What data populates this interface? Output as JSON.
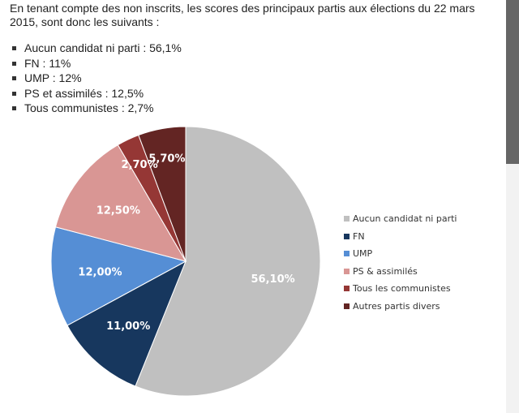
{
  "article": {
    "intro": "En tenant compte des non inscrits, les scores des principaux partis aux élections du 22 mars 2015, sont donc les suivants :",
    "bullets": [
      "Aucun candidat ni parti : 56,1%",
      "FN : 11%",
      "UMP : 12%",
      "PS et assimilés : 12,5%",
      "Tous communistes : 2,7%"
    ]
  },
  "chart_data": {
    "type": "pie",
    "categories": [
      "Aucun candidat ni parti",
      "FN",
      "UMP",
      "PS & assimilés",
      "Tous les communistes",
      "Autres partis divers"
    ],
    "values": [
      56.1,
      11.0,
      12.0,
      12.5,
      2.7,
      5.7
    ],
    "value_labels": [
      "56,10%",
      "11,00%",
      "12,00%",
      "12,50%",
      "2,70%",
      "5,70%"
    ],
    "colors": [
      "#c0c0c0",
      "#17375e",
      "#558ed5",
      "#d99694",
      "#953735",
      "#632523"
    ],
    "start_angle_deg": 0,
    "direction": "clockwise",
    "legend_position": "right",
    "title": ""
  }
}
